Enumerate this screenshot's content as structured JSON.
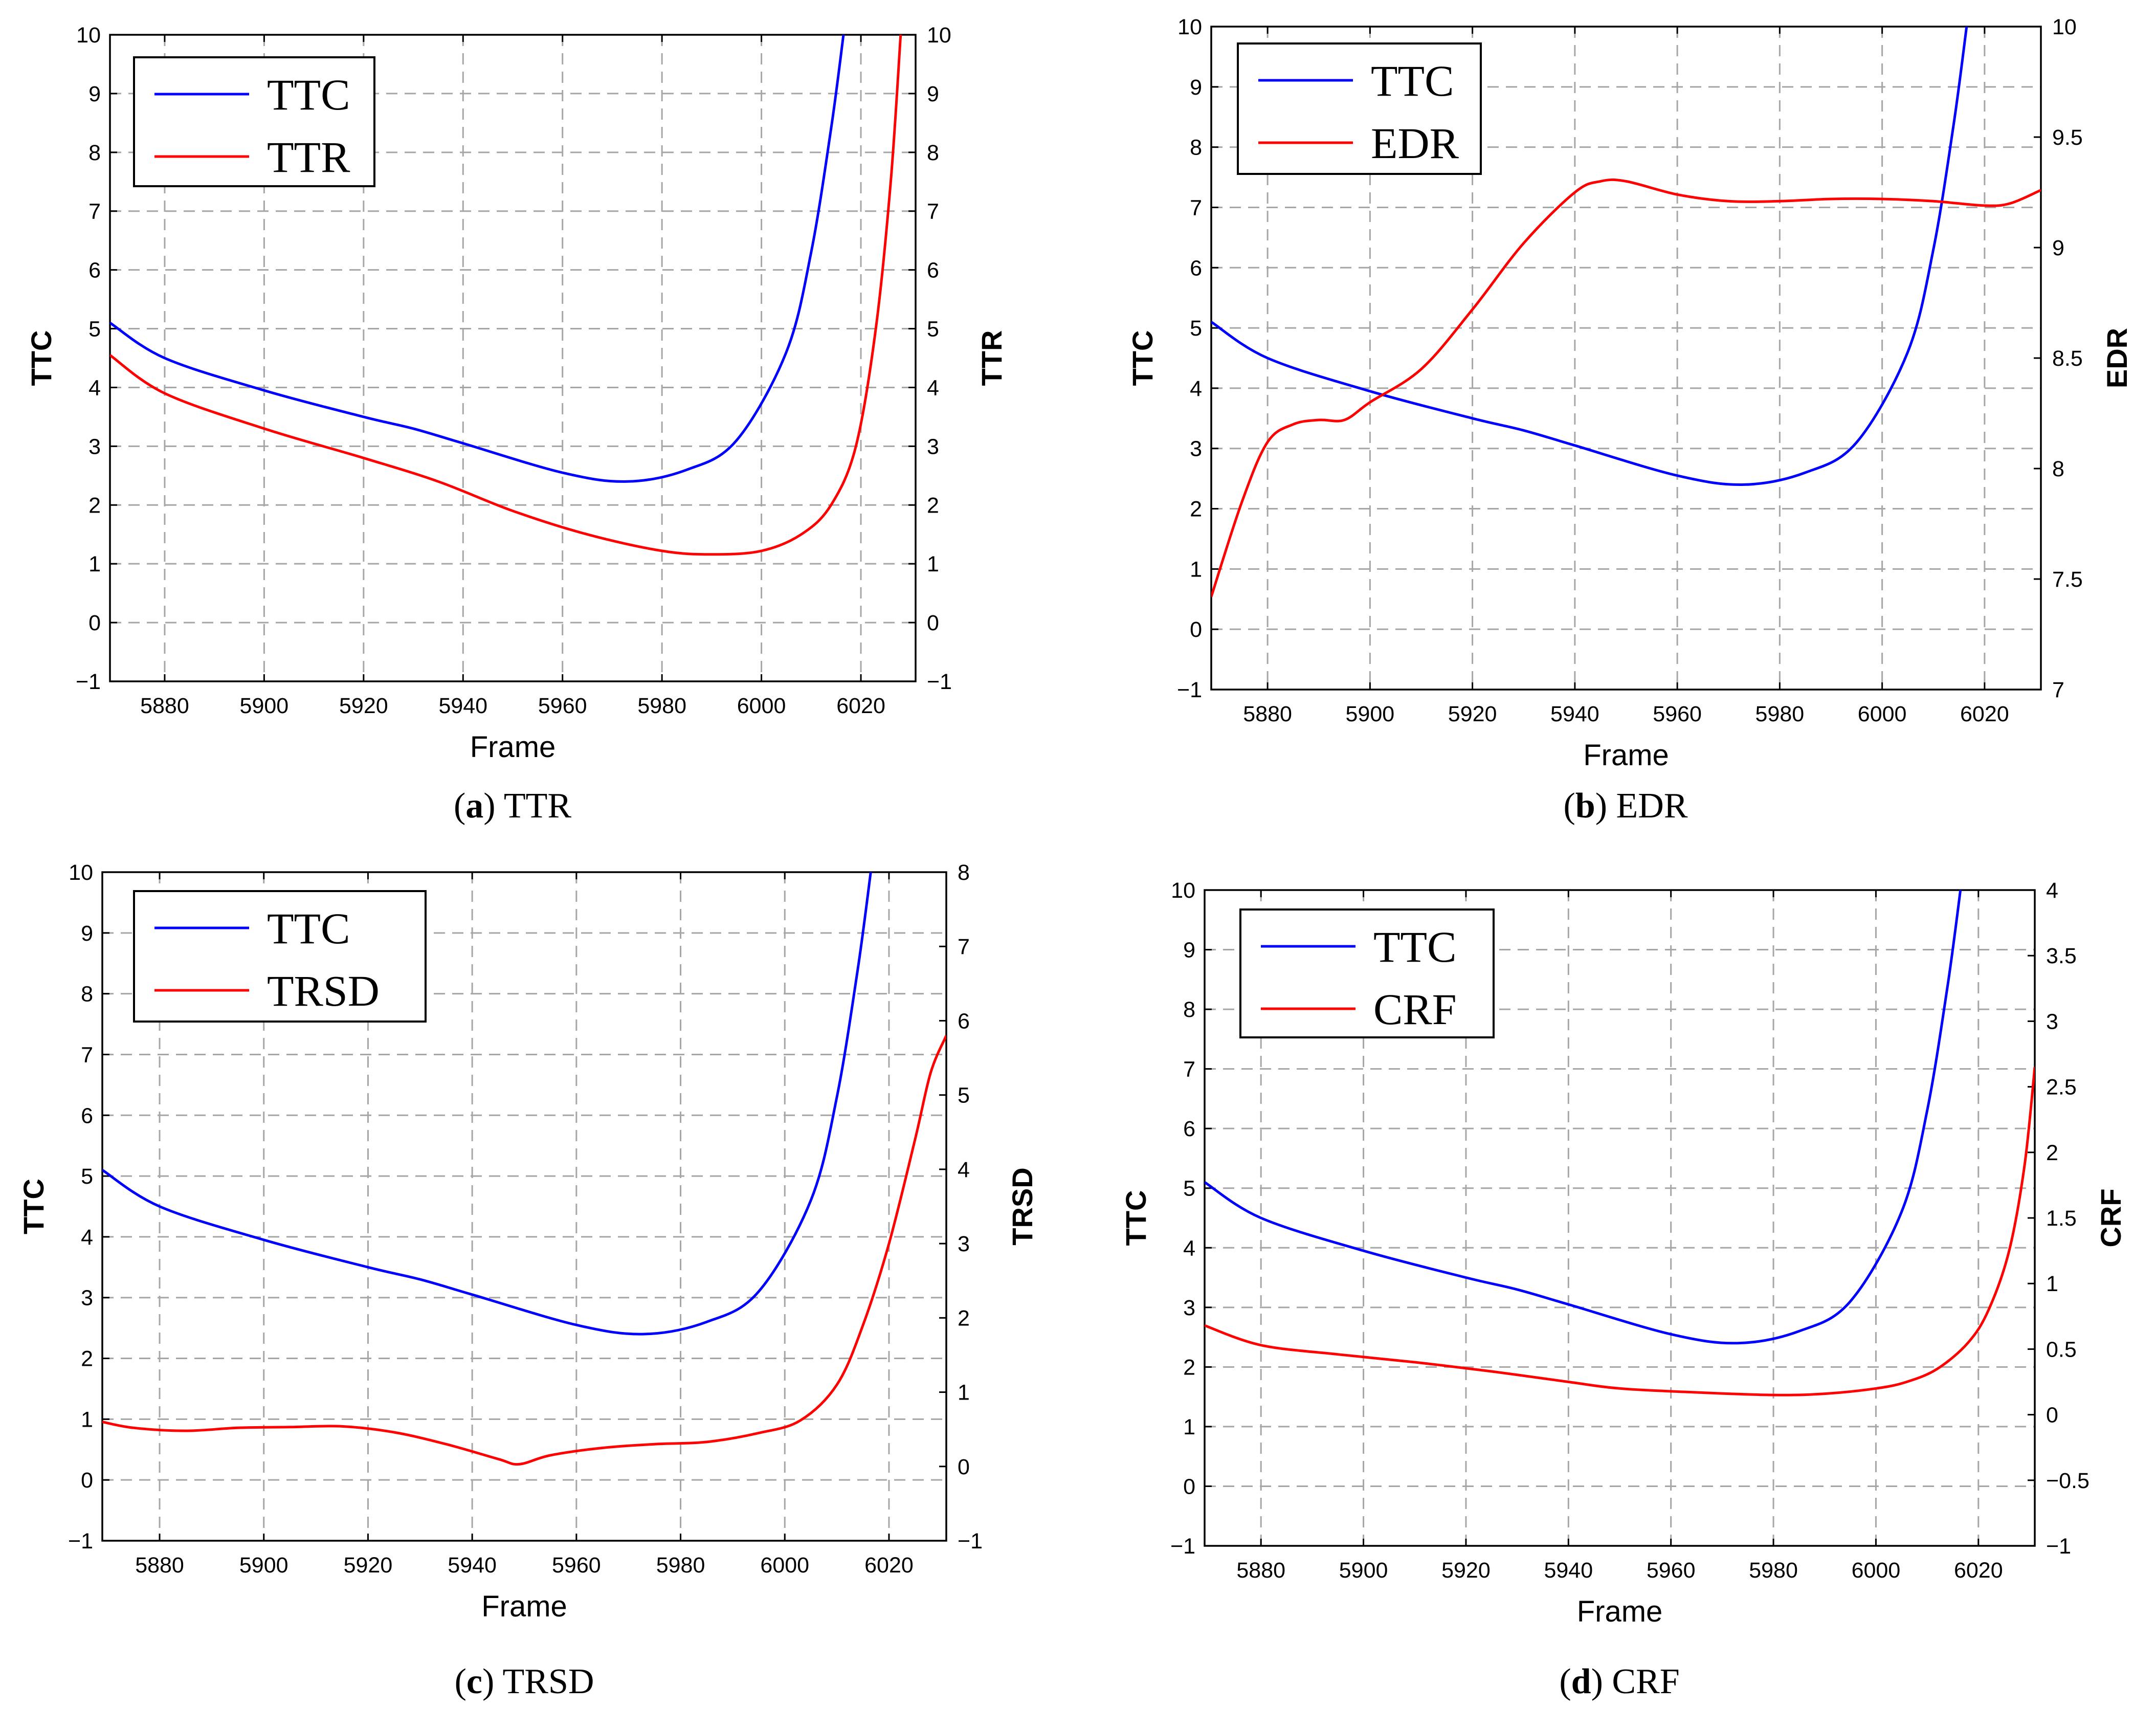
{
  "chart_data": [
    {
      "type": "line",
      "caption_letter": "a",
      "caption_text": "TTR",
      "xlabel": "Frame",
      "ylabel_left": "TTC",
      "ylabel_right": "TTR",
      "xlim": [
        5869,
        6031
      ],
      "xticks": [
        5880,
        5900,
        5920,
        5940,
        5960,
        5980,
        6000,
        6020
      ],
      "ylim_left": [
        -1,
        10
      ],
      "yticks_left": [
        -1,
        0,
        1,
        2,
        3,
        4,
        5,
        6,
        7,
        8,
        9,
        10
      ],
      "ylim_right": [
        -1,
        10
      ],
      "yticks_right": [
        -1,
        0,
        1,
        2,
        3,
        4,
        5,
        6,
        7,
        8,
        9,
        10
      ],
      "grid": true,
      "legend_position": "top-left",
      "series": [
        {
          "name": "TTC",
          "color": "#0000ff",
          "axis": "left",
          "x": [
            5869,
            5880,
            5900,
            5920,
            5930,
            5940,
            5960,
            5973,
            5985,
            5995,
            6005,
            6010,
            6014,
            6016.5
          ],
          "y": [
            5.1,
            4.5,
            3.95,
            3.5,
            3.3,
            3.05,
            2.55,
            2.4,
            2.6,
            3.1,
            4.6,
            6.3,
            8.4,
            10
          ]
        },
        {
          "name": "TTR",
          "color": "#ff0000",
          "axis": "right",
          "x": [
            5869,
            5880,
            5900,
            5920,
            5935,
            5950,
            5965,
            5980,
            5990,
            6000,
            6008,
            6014,
            6019,
            6023,
            6026,
            6028
          ],
          "y": [
            4.55,
            3.9,
            3.3,
            2.8,
            2.4,
            1.9,
            1.5,
            1.22,
            1.16,
            1.22,
            1.5,
            2.0,
            3.0,
            5.0,
            7.5,
            10
          ]
        }
      ]
    },
    {
      "type": "line",
      "caption_letter": "b",
      "caption_text": "EDR",
      "xlabel": "Frame",
      "ylabel_left": "TTC",
      "ylabel_right": "EDR",
      "xlim": [
        5869,
        6031
      ],
      "xticks": [
        5880,
        5900,
        5920,
        5940,
        5960,
        5980,
        6000,
        6020
      ],
      "ylim_left": [
        -1,
        10
      ],
      "yticks_left": [
        -1,
        0,
        1,
        2,
        3,
        4,
        5,
        6,
        7,
        8,
        9,
        10
      ],
      "ylim_right": [
        7,
        10
      ],
      "yticks_right": [
        7,
        7.5,
        8,
        8.5,
        9,
        9.5,
        10
      ],
      "grid": true,
      "legend_position": "top-left",
      "series": [
        {
          "name": "TTC",
          "color": "#0000ff",
          "axis": "left",
          "x": [
            5869,
            5880,
            5900,
            5920,
            5930,
            5940,
            5960,
            5973,
            5985,
            5995,
            6005,
            6010,
            6014,
            6016.5
          ],
          "y": [
            5.1,
            4.5,
            3.95,
            3.5,
            3.3,
            3.05,
            2.55,
            2.4,
            2.6,
            3.1,
            4.6,
            6.3,
            8.4,
            10
          ]
        },
        {
          "name": "EDR",
          "color": "#ff0000",
          "axis": "right",
          "x": [
            5869,
            5875,
            5880,
            5885,
            5890,
            5895,
            5900,
            5910,
            5920,
            5930,
            5940,
            5945,
            5950,
            5960,
            5970,
            5980,
            5990,
            6000,
            6010,
            6020,
            6025,
            6031
          ],
          "y": [
            7.42,
            7.85,
            8.12,
            8.2,
            8.22,
            8.22,
            8.3,
            8.45,
            8.72,
            9.02,
            9.25,
            9.3,
            9.3,
            9.24,
            9.21,
            9.21,
            9.22,
            9.22,
            9.21,
            9.19,
            9.2,
            9.26
          ]
        }
      ]
    },
    {
      "type": "line",
      "caption_letter": "c",
      "caption_text": "TRSD",
      "xlabel": "Frame",
      "ylabel_left": "TTC",
      "ylabel_right": "TRSD",
      "xlim": [
        5869,
        6031
      ],
      "xticks": [
        5880,
        5900,
        5920,
        5940,
        5960,
        5980,
        6000,
        6020
      ],
      "ylim_left": [
        -1,
        10
      ],
      "yticks_left": [
        -1,
        0,
        1,
        2,
        3,
        4,
        5,
        6,
        7,
        8,
        9,
        10
      ],
      "ylim_right": [
        -1,
        8
      ],
      "yticks_right": [
        -1,
        0,
        1,
        2,
        3,
        4,
        5,
        6,
        7,
        8
      ],
      "grid": true,
      "legend_position": "top-left",
      "series": [
        {
          "name": "TTC",
          "color": "#0000ff",
          "axis": "left",
          "x": [
            5869,
            5880,
            5900,
            5920,
            5930,
            5940,
            5960,
            5973,
            5985,
            5995,
            6005,
            6010,
            6014,
            6016.5
          ],
          "y": [
            5.1,
            4.5,
            3.95,
            3.5,
            3.3,
            3.05,
            2.55,
            2.4,
            2.6,
            3.1,
            4.6,
            6.3,
            8.4,
            10
          ]
        },
        {
          "name": "TRSD",
          "color": "#ff0000",
          "axis": "right",
          "x": [
            5869,
            5875,
            5885,
            5895,
            5905,
            5915,
            5925,
            5935,
            5945,
            5949,
            5955,
            5965,
            5975,
            5985,
            5995,
            6003,
            6010,
            6015,
            6020,
            6025,
            6028,
            6031
          ],
          "y": [
            0.6,
            0.52,
            0.48,
            0.52,
            0.53,
            0.54,
            0.46,
            0.3,
            0.1,
            0.03,
            0.15,
            0.25,
            0.3,
            0.33,
            0.45,
            0.62,
            1.1,
            1.9,
            3.0,
            4.4,
            5.3,
            5.8
          ]
        }
      ]
    },
    {
      "type": "line",
      "caption_letter": "d",
      "caption_text": "CRF",
      "xlabel": "Frame",
      "ylabel_left": "TTC",
      "ylabel_right": "CRF",
      "xlim": [
        5869,
        6031
      ],
      "xticks": [
        5880,
        5900,
        5920,
        5940,
        5960,
        5980,
        6000,
        6020
      ],
      "ylim_left": [
        -1,
        10
      ],
      "yticks_left": [
        -1,
        0,
        1,
        2,
        3,
        4,
        5,
        6,
        7,
        8,
        9,
        10
      ],
      "ylim_right": [
        -1,
        4
      ],
      "yticks_right": [
        -1,
        -0.5,
        0,
        0.5,
        1,
        1.5,
        2,
        2.5,
        3,
        3.5,
        4
      ],
      "grid": true,
      "legend_position": "top-left",
      "series": [
        {
          "name": "TTC",
          "color": "#0000ff",
          "axis": "left",
          "x": [
            5869,
            5880,
            5900,
            5920,
            5930,
            5940,
            5960,
            5973,
            5985,
            5995,
            6005,
            6010,
            6014,
            6016.5
          ],
          "y": [
            5.1,
            4.5,
            3.95,
            3.5,
            3.3,
            3.05,
            2.55,
            2.4,
            2.6,
            3.1,
            4.6,
            6.3,
            8.4,
            10
          ]
        },
        {
          "name": "CRF",
          "color": "#ff0000",
          "axis": "right",
          "x": [
            5869,
            5880,
            5895,
            5910,
            5925,
            5940,
            5950,
            5965,
            5980,
            5990,
            6000,
            6006,
            6012,
            6018,
            6022,
            6026,
            6029,
            6031
          ],
          "y": [
            0.68,
            0.53,
            0.46,
            0.4,
            0.33,
            0.25,
            0.2,
            0.17,
            0.15,
            0.16,
            0.2,
            0.25,
            0.35,
            0.55,
            0.8,
            1.25,
            1.9,
            2.65
          ]
        }
      ]
    }
  ]
}
